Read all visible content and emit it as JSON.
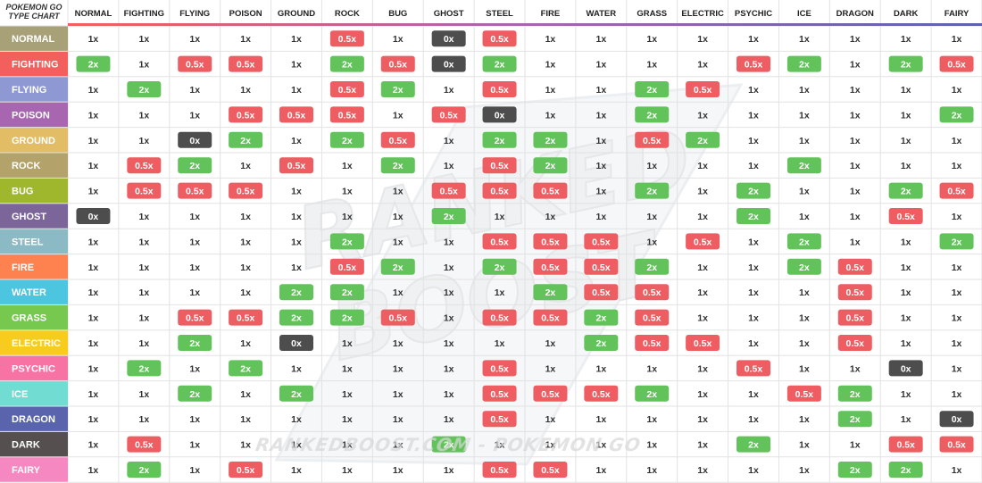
{
  "chart_data": {
    "type": "table",
    "title": "POKEMON GO TYPE CHART",
    "title_lines": [
      "POKEMON GO",
      "TYPE CHART"
    ],
    "columns": [
      "NORMAL",
      "FIGHTING",
      "FLYING",
      "POISON",
      "GROUND",
      "ROCK",
      "BUG",
      "GHOST",
      "STEEL",
      "FIRE",
      "WATER",
      "GRASS",
      "ELECTRIC",
      "PSYCHIC",
      "ICE",
      "DRAGON",
      "DARK",
      "FAIRY"
    ],
    "rows": [
      "NORMAL",
      "FIGHTING",
      "FLYING",
      "POISON",
      "GROUND",
      "ROCK",
      "BUG",
      "GHOST",
      "STEEL",
      "FIRE",
      "WATER",
      "GRASS",
      "ELECTRIC",
      "PSYCHIC",
      "ICE",
      "DRAGON",
      "DARK",
      "FAIRY"
    ],
    "type_colors": {
      "NORMAL": "#a8a077",
      "FIGHTING": "#f25f5c",
      "FLYING": "#8e98d3",
      "POISON": "#a865b0",
      "GROUND": "#e2bd66",
      "ROCK": "#b3a26a",
      "BUG": "#9fb72d",
      "GHOST": "#7b6599",
      "STEEL": "#8cbac4",
      "FIRE": "#fe8150",
      "WATER": "#4bc5e0",
      "GRASS": "#76c94e",
      "ELECTRIC": "#f8cc1c",
      "PSYCHIC": "#f773a4",
      "ICE": "#70dcd2",
      "DRAGON": "#5a64ad",
      "DARK": "#55504f",
      "FAIRY": "#f587c1"
    },
    "value_colors": {
      "2x": "#62c35b",
      "0.5x": "#ee5d61",
      "0x": "#4d4d4d",
      "1x": "#ffffff"
    },
    "header_underline_colors": [
      "#f25f5c",
      "#a865b0",
      "#5a64ad"
    ],
    "values": [
      [
        "1x",
        "1x",
        "1x",
        "1x",
        "1x",
        "0.5x",
        "1x",
        "0x",
        "0.5x",
        "1x",
        "1x",
        "1x",
        "1x",
        "1x",
        "1x",
        "1x",
        "1x",
        "1x"
      ],
      [
        "2x",
        "1x",
        "0.5x",
        "0.5x",
        "1x",
        "2x",
        "0.5x",
        "0x",
        "2x",
        "1x",
        "1x",
        "1x",
        "1x",
        "0.5x",
        "2x",
        "1x",
        "2x",
        "0.5x"
      ],
      [
        "1x",
        "2x",
        "1x",
        "1x",
        "1x",
        "0.5x",
        "2x",
        "1x",
        "0.5x",
        "1x",
        "1x",
        "2x",
        "0.5x",
        "1x",
        "1x",
        "1x",
        "1x",
        "1x"
      ],
      [
        "1x",
        "1x",
        "1x",
        "0.5x",
        "0.5x",
        "0.5x",
        "1x",
        "0.5x",
        "0x",
        "1x",
        "1x",
        "2x",
        "1x",
        "1x",
        "1x",
        "1x",
        "1x",
        "2x"
      ],
      [
        "1x",
        "1x",
        "0x",
        "2x",
        "1x",
        "2x",
        "0.5x",
        "1x",
        "2x",
        "2x",
        "1x",
        "0.5x",
        "2x",
        "1x",
        "1x",
        "1x",
        "1x",
        "1x"
      ],
      [
        "1x",
        "0.5x",
        "2x",
        "1x",
        "0.5x",
        "1x",
        "2x",
        "1x",
        "0.5x",
        "2x",
        "1x",
        "1x",
        "1x",
        "1x",
        "2x",
        "1x",
        "1x",
        "1x"
      ],
      [
        "1x",
        "0.5x",
        "0.5x",
        "0.5x",
        "1x",
        "1x",
        "1x",
        "0.5x",
        "0.5x",
        "0.5x",
        "1x",
        "2x",
        "1x",
        "2x",
        "1x",
        "1x",
        "2x",
        "0.5x"
      ],
      [
        "0x",
        "1x",
        "1x",
        "1x",
        "1x",
        "1x",
        "1x",
        "2x",
        "1x",
        "1x",
        "1x",
        "1x",
        "1x",
        "2x",
        "1x",
        "1x",
        "0.5x",
        "1x"
      ],
      [
        "1x",
        "1x",
        "1x",
        "1x",
        "1x",
        "2x",
        "1x",
        "1x",
        "0.5x",
        "0.5x",
        "0.5x",
        "1x",
        "0.5x",
        "1x",
        "2x",
        "1x",
        "1x",
        "2x"
      ],
      [
        "1x",
        "1x",
        "1x",
        "1x",
        "1x",
        "0.5x",
        "2x",
        "1x",
        "2x",
        "0.5x",
        "0.5x",
        "2x",
        "1x",
        "1x",
        "2x",
        "0.5x",
        "1x",
        "1x"
      ],
      [
        "1x",
        "1x",
        "1x",
        "1x",
        "2x",
        "2x",
        "1x",
        "1x",
        "1x",
        "2x",
        "0.5x",
        "0.5x",
        "1x",
        "1x",
        "1x",
        "0.5x",
        "1x",
        "1x"
      ],
      [
        "1x",
        "1x",
        "0.5x",
        "0.5x",
        "2x",
        "2x",
        "0.5x",
        "1x",
        "0.5x",
        "0.5x",
        "2x",
        "0.5x",
        "1x",
        "1x",
        "1x",
        "0.5x",
        "1x",
        "1x"
      ],
      [
        "1x",
        "1x",
        "2x",
        "1x",
        "0x",
        "1x",
        "1x",
        "1x",
        "1x",
        "1x",
        "2x",
        "0.5x",
        "0.5x",
        "1x",
        "1x",
        "0.5x",
        "1x",
        "1x"
      ],
      [
        "1x",
        "2x",
        "1x",
        "2x",
        "1x",
        "1x",
        "1x",
        "1x",
        "0.5x",
        "1x",
        "1x",
        "1x",
        "1x",
        "0.5x",
        "1x",
        "1x",
        "0x",
        "1x"
      ],
      [
        "1x",
        "1x",
        "2x",
        "1x",
        "2x",
        "1x",
        "1x",
        "1x",
        "0.5x",
        "0.5x",
        "0.5x",
        "2x",
        "1x",
        "1x",
        "0.5x",
        "2x",
        "1x",
        "1x"
      ],
      [
        "1x",
        "1x",
        "1x",
        "1x",
        "1x",
        "1x",
        "1x",
        "1x",
        "0.5x",
        "1x",
        "1x",
        "1x",
        "1x",
        "1x",
        "1x",
        "2x",
        "1x",
        "0x"
      ],
      [
        "1x",
        "0.5x",
        "1x",
        "1x",
        "1x",
        "1x",
        "1x",
        "2x",
        "1x",
        "1x",
        "1x",
        "1x",
        "1x",
        "2x",
        "1x",
        "1x",
        "0.5x",
        "0.5x"
      ],
      [
        "1x",
        "2x",
        "1x",
        "0.5x",
        "1x",
        "1x",
        "1x",
        "1x",
        "0.5x",
        "0.5x",
        "1x",
        "1x",
        "1x",
        "1x",
        "1x",
        "2x",
        "2x",
        "1x"
      ]
    ]
  },
  "watermark": {
    "logo_lines": [
      "RANKED",
      "BOOST"
    ],
    "caption": "RANKEDBOOST.COM - POKEMON GO"
  }
}
